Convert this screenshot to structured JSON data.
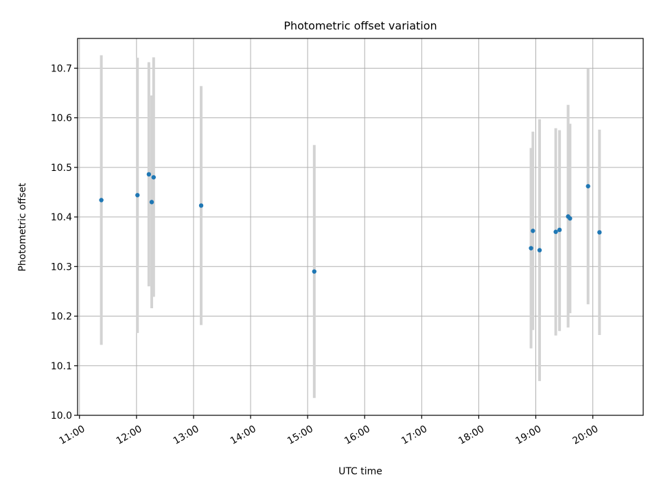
{
  "colors": {
    "marker": "#1f77b4",
    "errorbar": "#d3d3d3",
    "grid": "#b0b0b0",
    "axes": "#000000",
    "background": "#ffffff"
  },
  "chart_data": {
    "type": "scatter",
    "title": "Photometric offset variation",
    "xlabel": "UTC time",
    "ylabel": "Photometric offset",
    "grid": true,
    "legend": "none",
    "x_axis_kind": "time",
    "xlim": [
      "10:58",
      "20:53"
    ],
    "ylim": [
      10.0,
      10.76
    ],
    "x_ticks": [
      "11:00",
      "12:00",
      "13:00",
      "14:00",
      "15:00",
      "16:00",
      "17:00",
      "18:00",
      "19:00",
      "20:00"
    ],
    "y_ticks": [
      "10.0",
      "10.1",
      "10.2",
      "10.3",
      "10.4",
      "10.5",
      "10.6",
      "10.7"
    ],
    "series": [
      {
        "points": [
          {
            "time": "11:23",
            "y": 10.434,
            "low": 10.142,
            "high": 10.726
          },
          {
            "time": "12:01",
            "y": 10.444,
            "low": 10.166,
            "high": 10.721
          },
          {
            "time": "12:13",
            "y": 10.486,
            "low": 10.26,
            "high": 10.712
          },
          {
            "time": "12:16",
            "y": 10.43,
            "low": 10.216,
            "high": 10.645
          },
          {
            "time": "12:18",
            "y": 10.48,
            "low": 10.239,
            "high": 10.722
          },
          {
            "time": "13:08",
            "y": 10.423,
            "low": 10.182,
            "high": 10.664
          },
          {
            "time": "15:07",
            "y": 10.29,
            "low": 10.035,
            "high": 10.545
          },
          {
            "time": "18:55",
            "y": 10.337,
            "low": 10.135,
            "high": 10.539
          },
          {
            "time": "18:57",
            "y": 10.372,
            "low": 10.172,
            "high": 10.572
          },
          {
            "time": "19:04",
            "y": 10.333,
            "low": 10.069,
            "high": 10.597
          },
          {
            "time": "19:21",
            "y": 10.37,
            "low": 10.161,
            "high": 10.579
          },
          {
            "time": "19:25",
            "y": 10.374,
            "low": 10.17,
            "high": 10.575
          },
          {
            "time": "19:34",
            "y": 10.401,
            "low": 10.177,
            "high": 10.626
          },
          {
            "time": "19:36",
            "y": 10.397,
            "low": 10.206,
            "high": 10.588
          },
          {
            "time": "19:55",
            "y": 10.462,
            "low": 10.224,
            "high": 10.7
          },
          {
            "time": "20:07",
            "y": 10.369,
            "low": 10.162,
            "high": 10.576
          }
        ]
      }
    ]
  }
}
